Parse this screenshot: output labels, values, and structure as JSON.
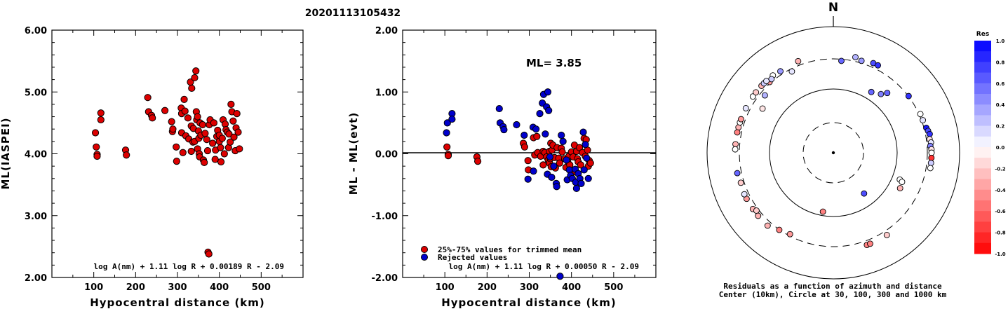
{
  "title": "20201113105432",
  "colors": {
    "accepted": "#dd0000",
    "rejected": "#0000cc",
    "positive_res": "#0000ff",
    "negative_res": "#ff0000"
  },
  "chart_data": [
    {
      "type": "scatter",
      "xlabel": "Hypocentral distance (km)",
      "ylabel": "ML(IASPEI)",
      "xlim": [
        0,
        600
      ],
      "ylim": [
        2.0,
        6.0
      ],
      "xticks": [
        "100",
        "200",
        "300",
        "400",
        "500"
      ],
      "yticks": [
        "2.00",
        "3.00",
        "4.00",
        "5.00",
        "6.00"
      ],
      "formula": "log A(nm) + 1.11 log R + 0.00189 R - 2.09",
      "series": [
        {
          "values": [
            [
              104,
              4.34
            ],
            [
              106,
              4.11
            ],
            [
              108,
              3.99
            ],
            [
              108,
              3.96
            ],
            [
              117,
              4.66
            ],
            [
              117,
              4.55
            ],
            [
              176,
              4.06
            ],
            [
              178,
              3.98
            ],
            [
              229,
              4.91
            ],
            [
              231,
              4.68
            ],
            [
              238,
              4.62
            ],
            [
              240,
              4.58
            ],
            [
              270,
              4.7
            ],
            [
              286,
              4.52
            ],
            [
              288,
              4.36
            ],
            [
              289,
              4.4
            ],
            [
              297,
              4.11
            ],
            [
              298,
              3.88
            ],
            [
              309,
              4.74
            ],
            [
              310,
              4.65
            ],
            [
              310,
              4.34
            ],
            [
              313,
              4.02
            ],
            [
              316,
              4.88
            ],
            [
              318,
              4.69
            ],
            [
              320,
              4.29
            ],
            [
              325,
              4.58
            ],
            [
              327,
              4.24
            ],
            [
              331,
              5.16
            ],
            [
              333,
              4.45
            ],
            [
              333,
              4.04
            ],
            [
              334,
              5.06
            ],
            [
              337,
              4.19
            ],
            [
              338,
              4.41
            ],
            [
              341,
              5.23
            ],
            [
              341,
              4.2
            ],
            [
              344,
              5.34
            ],
            [
              345,
              4.68
            ],
            [
              346,
              4.55
            ],
            [
              348,
              4.6
            ],
            [
              348,
              4.08
            ],
            [
              350,
              4.37
            ],
            [
              351,
              4.25
            ],
            [
              352,
              4.0
            ],
            [
              353,
              3.95
            ],
            [
              354,
              4.5
            ],
            [
              356,
              4.3
            ],
            [
              360,
              4.47
            ],
            [
              362,
              3.9
            ],
            [
              364,
              3.86
            ],
            [
              366,
              4.33
            ],
            [
              370,
              4.23
            ],
            [
              372,
              4.05
            ],
            [
              373,
              2.41
            ],
            [
              375,
              2.38
            ],
            [
              376,
              4.47
            ],
            [
              378,
              4.55
            ],
            [
              384,
              4.17
            ],
            [
              387,
              4.5
            ],
            [
              390,
              3.91
            ],
            [
              391,
              4.06
            ],
            [
              394,
              4.28
            ],
            [
              396,
              4.38
            ],
            [
              400,
              4.3
            ],
            [
              400,
              4.2
            ],
            [
              403,
              4.1
            ],
            [
              404,
              3.87
            ],
            [
              407,
              4.25
            ],
            [
              409,
              4.55
            ],
            [
              412,
              4.0
            ],
            [
              414,
              4.48
            ],
            [
              416,
              4.39
            ],
            [
              419,
              4.35
            ],
            [
              422,
              4.1
            ],
            [
              423,
              4.32
            ],
            [
              426,
              4.19
            ],
            [
              428,
              4.8
            ],
            [
              430,
              4.68
            ],
            [
              433,
              4.53
            ],
            [
              435,
              4.27
            ],
            [
              438,
              4.05
            ],
            [
              440,
              4.42
            ],
            [
              442,
              4.65
            ],
            [
              445,
              4.35
            ],
            [
              448,
              4.08
            ]
          ]
        }
      ]
    },
    {
      "type": "scatter",
      "xlabel": "Hypocentral distance (km)",
      "ylabel": "ML - ML(evt)",
      "xlim": [
        0,
        600
      ],
      "ylim": [
        -2.0,
        2.0
      ],
      "xticks": [
        "100",
        "200",
        "300",
        "400",
        "500"
      ],
      "yticks": [
        "-2.00",
        "-1.00",
        "0.00",
        "1.00",
        "2.00"
      ],
      "annotation": "ML= 3.85",
      "formula": "log A(nm) + 1.11 log R + 0.00050 R - 2.09",
      "series": [
        {
          "name": "25%-75% values for trimmed mean",
          "values": [
            [
              105,
              0.11
            ],
            [
              108,
              -0.01
            ],
            [
              108,
              -0.03
            ],
            [
              176,
              -0.05
            ],
            [
              178,
              -0.12
            ],
            [
              286,
              0.17
            ],
            [
              289,
              0.11
            ],
            [
              297,
              -0.11
            ],
            [
              298,
              -0.26
            ],
            [
              310,
              0.26
            ],
            [
              313,
              -0.02
            ],
            [
              318,
              0.28
            ],
            [
              320,
              0.02
            ],
            [
              327,
              -0.04
            ],
            [
              333,
              0.04
            ],
            [
              333,
              -0.18
            ],
            [
              337,
              0.02
            ],
            [
              341,
              -0.05
            ],
            [
              345,
              -0.1
            ],
            [
              348,
              0.04
            ],
            [
              348,
              -0.15
            ],
            [
              350,
              -0.08
            ],
            [
              351,
              0.17
            ],
            [
              352,
              -0.21
            ],
            [
              354,
              0.06
            ],
            [
              356,
              0.14
            ],
            [
              360,
              -0.06
            ],
            [
              362,
              -0.23
            ],
            [
              366,
              0.1
            ],
            [
              370,
              -0.07
            ],
            [
              372,
              -0.15
            ],
            [
              376,
              0.09
            ],
            [
              378,
              0.03
            ],
            [
              384,
              -0.08
            ],
            [
              387,
              -0.22
            ],
            [
              391,
              -0.12
            ],
            [
              394,
              -0.04
            ],
            [
              396,
              -0.18
            ],
            [
              400,
              0.03
            ],
            [
              403,
              -0.3
            ],
            [
              404,
              -0.05
            ],
            [
              407,
              0.14
            ],
            [
              412,
              0.04
            ],
            [
              414,
              -0.08
            ],
            [
              416,
              -0.13
            ],
            [
              419,
              0.1
            ],
            [
              422,
              -0.18
            ],
            [
              426,
              0.02
            ],
            [
              430,
              0.25
            ],
            [
              433,
              -0.04
            ],
            [
              435,
              0.23
            ],
            [
              438,
              0.06
            ],
            [
              440,
              -0.2
            ],
            [
              442,
              -0.11
            ],
            [
              445,
              -0.15
            ]
          ]
        },
        {
          "name": "Rejected values",
          "values": [
            [
              104,
              0.34
            ],
            [
              106,
              0.5
            ],
            [
              117,
              0.65
            ],
            [
              117,
              0.56
            ],
            [
              229,
              0.73
            ],
            [
              231,
              0.5
            ],
            [
              238,
              0.44
            ],
            [
              240,
              0.39
            ],
            [
              270,
              0.47
            ],
            [
              288,
              0.3
            ],
            [
              297,
              -0.41
            ],
            [
              309,
              0.43
            ],
            [
              310,
              -0.28
            ],
            [
              316,
              0.4
            ],
            [
              325,
              0.65
            ],
            [
              331,
              0.82
            ],
            [
              334,
              0.96
            ],
            [
              338,
              0.32
            ],
            [
              341,
              0.76
            ],
            [
              343,
              -0.33
            ],
            [
              344,
              1.0
            ],
            [
              346,
              0.7
            ],
            [
              349,
              -0.05
            ],
            [
              353,
              -0.38
            ],
            [
              358,
              -0.2
            ],
            [
              364,
              -0.48
            ],
            [
              365,
              -0.53
            ],
            [
              373,
              -1.98
            ],
            [
              376,
              0.3
            ],
            [
              380,
              0.2
            ],
            [
              388,
              -0.1
            ],
            [
              390,
              -0.42
            ],
            [
              395,
              -0.26
            ],
            [
              398,
              -0.35
            ],
            [
              402,
              -0.4
            ],
            [
              409,
              -0.25
            ],
            [
              410,
              -0.46
            ],
            [
              412,
              -0.56
            ],
            [
              416,
              -0.32
            ],
            [
              420,
              -0.4
            ],
            [
              423,
              -0.48
            ],
            [
              428,
              0.35
            ],
            [
              430,
              -0.26
            ],
            [
              433,
              0.15
            ],
            [
              436,
              -0.07
            ],
            [
              440,
              -0.4
            ]
          ]
        }
      ],
      "legend": "bottom-left"
    },
    {
      "type": "polar",
      "north_label": "N",
      "caption": [
        "Residuals as a function of azimuth and distance",
        "Center (10km), Circle at 30, 100, 300 and 1000 km"
      ],
      "colorbar": {
        "label": "Res",
        "ticks": [
          "1.0",
          "0.8",
          "0.6",
          "0.4",
          "0.2",
          "0.0",
          "-0.2",
          "-0.4",
          "-0.6",
          "-0.8",
          "-1.0"
        ]
      },
      "stations": [
        [
          -63,
          0.1
        ],
        [
          -58,
          -0.1
        ],
        [
          -55,
          0.0
        ],
        [
          -52,
          -0.2
        ],
        [
          -50,
          0.3
        ],
        [
          -47,
          -0.3
        ],
        [
          -45,
          0.2
        ],
        [
          -42,
          -0.4
        ],
        [
          -75,
          -0.3
        ],
        [
          -72,
          0.0
        ],
        [
          -78,
          -0.5
        ],
        [
          -70,
          -0.4
        ],
        [
          -85,
          -0.3
        ],
        [
          -88,
          0.0
        ],
        [
          -102,
          0.6
        ],
        [
          -125,
          -0.3
        ],
        [
          -118,
          -0.4
        ],
        [
          -170,
          -0.5
        ],
        [
          -152,
          -0.4
        ],
        [
          -145,
          -0.5
        ],
        [
          -138,
          -0.3
        ],
        [
          -127,
          -0.2
        ],
        [
          -115,
          0.1
        ],
        [
          -108,
          -0.2
        ],
        [
          -27,
          0.1
        ],
        [
          5,
          0.6
        ],
        [
          13,
          0.3
        ],
        [
          17,
          0.4
        ],
        [
          24,
          0.7
        ],
        [
          27,
          0.8
        ],
        [
          39,
          0.5
        ],
        [
          42,
          0.6
        ],
        [
          53,
          0.8
        ],
        [
          66,
          0.0
        ],
        [
          70,
          0.1
        ],
        [
          75,
          0.9
        ],
        [
          77,
          0.7
        ],
        [
          79,
          0.8
        ],
        [
          82,
          -0.1
        ],
        [
          84,
          0.1
        ],
        [
          86,
          0.5
        ],
        [
          88,
          -0.1
        ],
        [
          90,
          0.0
        ],
        [
          93,
          -0.8
        ],
        [
          96,
          0.2
        ],
        [
          99,
          0.0
        ],
        [
          -33,
          0.4
        ],
        [
          -38,
          0.0
        ],
        [
          -40,
          0.2
        ],
        [
          -43,
          0.1
        ],
        [
          -21,
          -0.3
        ],
        [
          32,
          0.6
        ],
        [
          -130,
          -0.3
        ],
        [
          143,
          0.7
        ],
        [
          112,
          0.0
        ],
        [
          113,
          0.0
        ],
        [
          118,
          -0.3
        ],
        [
          160,
          -0.5
        ],
        [
          158,
          -0.5
        ],
        [
          147,
          -0.2
        ]
      ],
      "station_radii": [
        1.0,
        0.85,
        1.0,
        1.0,
        0.91,
        1.0,
        1.0,
        0.97,
        1.0,
        1.0,
        1.0,
        1.0,
        1.0,
        1.0,
        1.0,
        1.0,
        1.0,
        0.61,
        0.94,
        0.96,
        1.0,
        0.98,
        1.0,
        0.99,
        0.93,
        0.94,
        1.0,
        0.98,
        1.0,
        1.0,
        0.77,
        0.82,
        0.96,
        0.97,
        0.97,
        0.98,
        0.99,
        1.0,
        0.99,
        1.0,
        0.99,
        1.0,
        1.0,
        1.0,
        1.0,
        1.0,
        0.99,
        1.0,
        0.98,
        1.0,
        1.0,
        0.73,
        1.0,
        0.52,
        0.73,
        0.76,
        0.77,
        1.0,
        1.0,
        1.0
      ]
    }
  ]
}
